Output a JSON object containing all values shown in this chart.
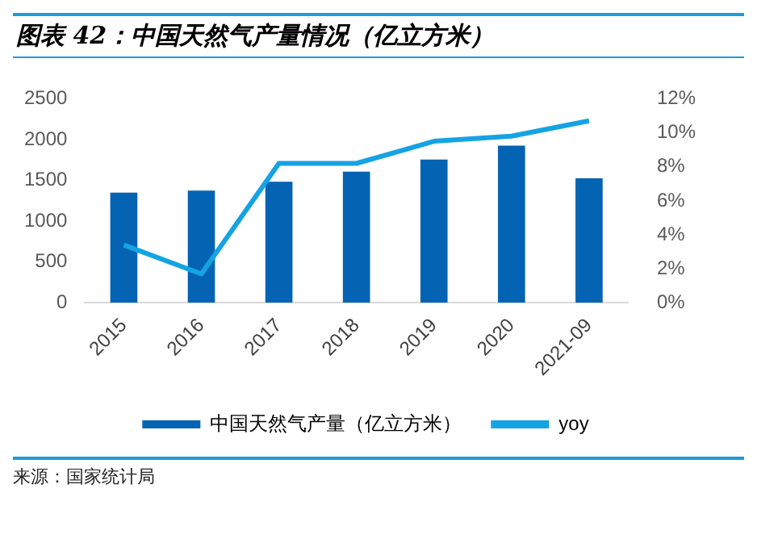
{
  "chart_data": {
    "type": "bar",
    "title": "图表 42：中国天然气产量情况（亿立方米）",
    "categories": [
      "2015",
      "2016",
      "2017",
      "2018",
      "2019",
      "2020",
      "2021-09"
    ],
    "series": [
      {
        "name": "中国天然气产量（亿立方米）",
        "color": "#0563b4",
        "values": [
          1349,
          1376,
          1483,
          1606,
          1756,
          1927,
          1526
        ]
      },
      {
        "name": "yoy",
        "type": "line",
        "axis": "y2",
        "color": "#14a3e3",
        "values": [
          3.4,
          1.7,
          8.2,
          8.2,
          9.5,
          9.8,
          10.7
        ]
      }
    ],
    "ylim": [
      0,
      2500
    ],
    "yticks": [
      0,
      500,
      1000,
      1500,
      2000,
      2500
    ],
    "y2lim": [
      0,
      12
    ],
    "y2ticks": [
      {
        "value": 0,
        "label": "0%"
      },
      {
        "value": 2,
        "label": "2%"
      },
      {
        "value": 4,
        "label": "4%"
      },
      {
        "value": 6,
        "label": "6%"
      },
      {
        "value": 8,
        "label": "8%"
      },
      {
        "value": 10,
        "label": "10%"
      },
      {
        "value": 12,
        "label": "12%"
      }
    ],
    "grid": false,
    "legend": "bottom",
    "marker": "none",
    "annotations": [
      "来源：国家统计局"
    ]
  }
}
